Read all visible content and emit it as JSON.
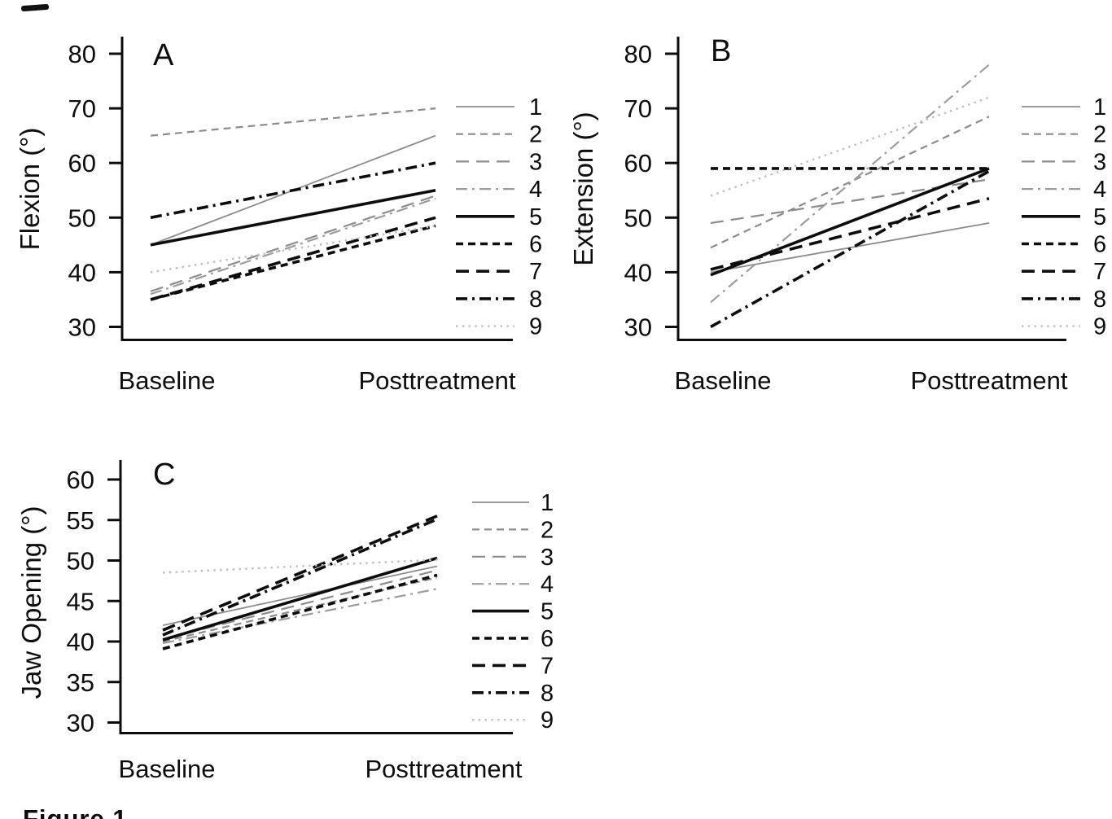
{
  "figure": {
    "caption": "Figure 1",
    "x_categories": [
      "Baseline",
      "Posttreatment"
    ],
    "legend_labels": [
      "1",
      "2",
      "3",
      "4",
      "5",
      "6",
      "7",
      "8",
      "9"
    ],
    "colors": {
      "black": "#0d0d0d",
      "gray": "#8c8c8c",
      "light_gray": "#bdbdbd",
      "background": "#ffffff"
    }
  },
  "chart_data": [
    {
      "type": "line",
      "panel": "A",
      "title": "A",
      "ylabel": "Flexion (°)",
      "xlabel": "",
      "categories": [
        "Baseline",
        "Posttreatment"
      ],
      "ylim": [
        30,
        80
      ],
      "yticks": [
        80,
        70,
        60,
        50,
        40,
        30
      ],
      "grid": false,
      "legend_position": "right",
      "series": [
        {
          "name": "1",
          "color": "#8c8c8c",
          "dash": "solid",
          "width": 1.8,
          "values": [
            45,
            65
          ]
        },
        {
          "name": "2",
          "color": "#8c8c8c",
          "dash": "short-dash",
          "width": 2.2,
          "values": [
            65,
            70
          ]
        },
        {
          "name": "3",
          "color": "#8c8c8c",
          "dash": "long-dash",
          "width": 2.2,
          "values": [
            36.5,
            54
          ]
        },
        {
          "name": "4",
          "color": "#9c9c9c",
          "dash": "dash-dot",
          "width": 2.2,
          "values": [
            36,
            53.5
          ]
        },
        {
          "name": "5",
          "color": "#0d0d0d",
          "dash": "solid",
          "width": 3.6,
          "values": [
            45,
            55
          ]
        },
        {
          "name": "6",
          "color": "#0d0d0d",
          "dash": "short-dash",
          "width": 3.6,
          "values": [
            35,
            48.5
          ]
        },
        {
          "name": "7",
          "color": "#0d0d0d",
          "dash": "long-dash",
          "width": 3.6,
          "values": [
            35,
            50
          ]
        },
        {
          "name": "8",
          "color": "#0d0d0d",
          "dash": "dash-dot",
          "width": 3.6,
          "values": [
            50,
            60
          ]
        },
        {
          "name": "9",
          "color": "#bdbdbd",
          "dash": "dotted",
          "width": 2.4,
          "values": [
            40,
            48.5
          ]
        }
      ]
    },
    {
      "type": "line",
      "panel": "B",
      "title": "B",
      "ylabel": "Extension (°)",
      "xlabel": "",
      "categories": [
        "Baseline",
        "Posttreatment"
      ],
      "ylim": [
        30,
        80
      ],
      "yticks": [
        80,
        70,
        60,
        50,
        40,
        30
      ],
      "grid": false,
      "legend_position": "right",
      "series": [
        {
          "name": "1",
          "color": "#8c8c8c",
          "dash": "solid",
          "width": 1.8,
          "values": [
            40,
            49
          ]
        },
        {
          "name": "2",
          "color": "#8c8c8c",
          "dash": "short-dash",
          "width": 2.2,
          "values": [
            44.5,
            68.5
          ]
        },
        {
          "name": "3",
          "color": "#8c8c8c",
          "dash": "long-dash",
          "width": 2.2,
          "values": [
            49,
            57
          ]
        },
        {
          "name": "4",
          "color": "#9c9c9c",
          "dash": "dash-dot",
          "width": 2.2,
          "values": [
            34.5,
            78
          ]
        },
        {
          "name": "5",
          "color": "#0d0d0d",
          "dash": "solid",
          "width": 3.6,
          "values": [
            39.5,
            59
          ]
        },
        {
          "name": "6",
          "color": "#0d0d0d",
          "dash": "short-dash",
          "width": 3.6,
          "values": [
            59,
            59
          ]
        },
        {
          "name": "7",
          "color": "#0d0d0d",
          "dash": "long-dash",
          "width": 3.6,
          "values": [
            40.5,
            53.5
          ]
        },
        {
          "name": "8",
          "color": "#0d0d0d",
          "dash": "dash-dot",
          "width": 3.6,
          "values": [
            30,
            58.5
          ]
        },
        {
          "name": "9",
          "color": "#bdbdbd",
          "dash": "dotted",
          "width": 2.4,
          "values": [
            54,
            72
          ]
        }
      ]
    },
    {
      "type": "line",
      "panel": "C",
      "title": "C",
      "ylabel": "Jaw Opening (°)",
      "xlabel": "",
      "categories": [
        "Baseline",
        "Posttreatment"
      ],
      "ylim": [
        30,
        60
      ],
      "yticks": [
        60,
        55,
        50,
        45,
        40,
        35,
        30
      ],
      "grid": false,
      "legend_position": "right",
      "series": [
        {
          "name": "1",
          "color": "#8c8c8c",
          "dash": "solid",
          "width": 1.8,
          "values": [
            42,
            49.3
          ]
        },
        {
          "name": "2",
          "color": "#8c8c8c",
          "dash": "short-dash",
          "width": 2.2,
          "values": [
            40,
            47.9
          ]
        },
        {
          "name": "3",
          "color": "#8c8c8c",
          "dash": "long-dash",
          "width": 2.2,
          "values": [
            40.3,
            48.8
          ]
        },
        {
          "name": "4",
          "color": "#9c9c9c",
          "dash": "dash-dot",
          "width": 2.2,
          "values": [
            39.8,
            46.5
          ]
        },
        {
          "name": "5",
          "color": "#0d0d0d",
          "dash": "solid",
          "width": 3.6,
          "values": [
            40.2,
            50.3
          ]
        },
        {
          "name": "6",
          "color": "#0d0d0d",
          "dash": "short-dash",
          "width": 3.6,
          "values": [
            39.1,
            48.2
          ]
        },
        {
          "name": "7",
          "color": "#0d0d0d",
          "dash": "long-dash",
          "width": 3.6,
          "values": [
            41.4,
            55.5
          ]
        },
        {
          "name": "8",
          "color": "#0d0d0d",
          "dash": "dash-dot",
          "width": 3.6,
          "values": [
            40.8,
            55.1
          ]
        },
        {
          "name": "9",
          "color": "#bdbdbd",
          "dash": "dotted",
          "width": 2.4,
          "values": [
            48.5,
            50.1
          ]
        }
      ]
    }
  ]
}
